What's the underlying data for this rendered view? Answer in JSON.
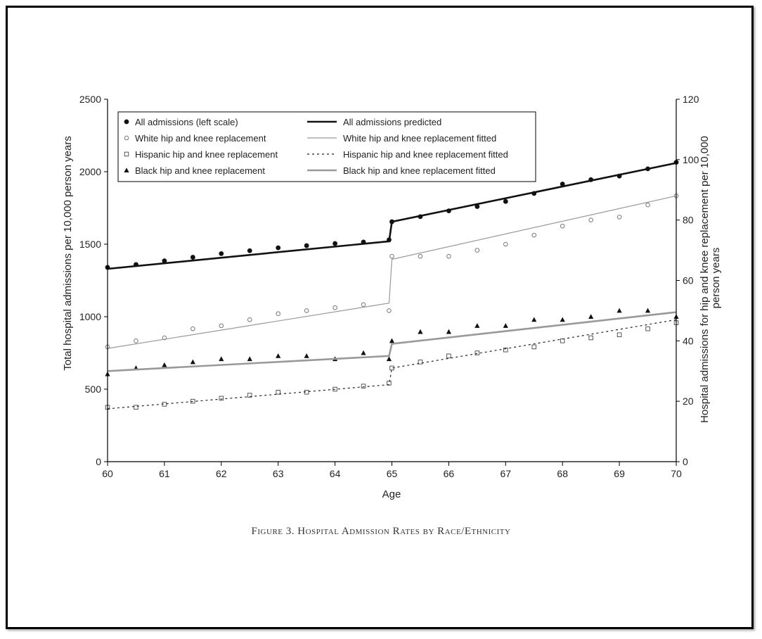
{
  "caption": "Figure 3. Hospital Admission Rates by Race/Ethnicity",
  "chart_data": {
    "type": "scatter",
    "title": "",
    "xlabel": "Age",
    "ylabel_left": "Total hospital admissions per 10,000 person years",
    "ylabel_right": "Hospital admissions for hip and knee replacement per 10,000 person years",
    "xlim": [
      60,
      70
    ],
    "ylim_left": [
      0,
      2500
    ],
    "ylim_right": [
      0,
      120
    ],
    "x_ticks": [
      "60",
      "61",
      "62",
      "63",
      "64",
      "65",
      "66",
      "67",
      "68",
      "69",
      "70"
    ],
    "y_ticks_left": [
      "0",
      "500",
      "1000",
      "1500",
      "2000",
      "2500"
    ],
    "y_ticks_right": [
      "0",
      "20",
      "40",
      "60",
      "80",
      "100",
      "120"
    ],
    "legend_placement": "top-left",
    "grid": false,
    "legend": [
      {
        "label": "All admissions (left scale)",
        "marker": "filled-circle"
      },
      {
        "label": "All admissions predicted",
        "line": "solid-thick-black"
      },
      {
        "label": "White hip and knee replacement",
        "marker": "open-circle"
      },
      {
        "label": "White hip and knee replacement fitted",
        "line": "solid-thin-gray"
      },
      {
        "label": "Hispanic hip and knee replacement",
        "marker": "open-square"
      },
      {
        "label": "Hispanic hip and knee replacement fitted",
        "line": "dotted-black"
      },
      {
        "label": "Black hip and knee replacement",
        "marker": "filled-triangle"
      },
      {
        "label": "Black hip and knee replacement fitted",
        "line": "solid-thick-gray"
      }
    ],
    "series": [
      {
        "name": "All admissions (left scale)",
        "axis": "left",
        "x": [
          60,
          60.5,
          61,
          61.5,
          62,
          62.5,
          63,
          63.5,
          64,
          64.5,
          64.95,
          65,
          65.5,
          66,
          66.5,
          67,
          67.5,
          68,
          68.5,
          69,
          69.5,
          70
        ],
        "y": [
          1340,
          1360,
          1385,
          1410,
          1435,
          1455,
          1475,
          1490,
          1505,
          1515,
          1530,
          1655,
          1690,
          1730,
          1760,
          1795,
          1850,
          1915,
          1945,
          1970,
          2020,
          2065
        ]
      },
      {
        "name": "All admissions predicted",
        "axis": "left",
        "x": [
          60,
          64.95,
          65,
          70
        ],
        "y": [
          1330,
          1520,
          1655,
          2060
        ]
      },
      {
        "name": "White hip and knee replacement",
        "axis": "right",
        "x": [
          60,
          60.5,
          61,
          61.5,
          62,
          62.5,
          63,
          63.5,
          64,
          64.5,
          64.95,
          65,
          65.5,
          66,
          66.5,
          67,
          67.5,
          68,
          68.5,
          69,
          69.5,
          70
        ],
        "y": [
          38,
          40,
          41,
          44,
          45,
          47,
          49,
          50,
          51,
          52,
          50,
          68,
          68,
          68,
          70,
          72,
          75,
          78,
          80,
          81,
          85,
          88
        ]
      },
      {
        "name": "White hip and knee replacement fitted",
        "axis": "right",
        "x": [
          60,
          64.95,
          65,
          70
        ],
        "y": [
          37.5,
          52.5,
          67,
          88
        ]
      },
      {
        "name": "Hispanic hip and knee replacement",
        "axis": "right",
        "x": [
          60,
          60.5,
          61,
          61.5,
          62,
          62.5,
          63,
          63.5,
          64,
          64.5,
          64.95,
          65,
          65.5,
          66,
          66.5,
          67,
          67.5,
          68,
          68.5,
          69,
          69.5,
          70
        ],
        "y": [
          18,
          18,
          19,
          20,
          21,
          22,
          23,
          23,
          24,
          25,
          26,
          31,
          33,
          35,
          36,
          37,
          38,
          40,
          41,
          42,
          44,
          46
        ]
      },
      {
        "name": "Hispanic hip and knee replacement fitted",
        "axis": "right",
        "x": [
          60,
          64.95,
          65,
          70
        ],
        "y": [
          17.5,
          25.5,
          31,
          47
        ]
      },
      {
        "name": "Black hip and knee replacement",
        "axis": "right",
        "x": [
          60,
          60.5,
          61,
          61.5,
          62,
          62.5,
          63,
          63.5,
          64,
          64.5,
          64.95,
          65,
          65.5,
          66,
          66.5,
          67,
          67.5,
          68,
          68.5,
          69,
          69.5,
          70
        ],
        "y": [
          29,
          31,
          32,
          33,
          34,
          34,
          35,
          35,
          34,
          36,
          34,
          40,
          43,
          43,
          45,
          45,
          47,
          47,
          48,
          50,
          50,
          48
        ]
      },
      {
        "name": "Black hip and knee replacement fitted",
        "axis": "right",
        "x": [
          60,
          64.95,
          65,
          70
        ],
        "y": [
          30,
          35,
          39,
          49.5
        ]
      }
    ]
  }
}
